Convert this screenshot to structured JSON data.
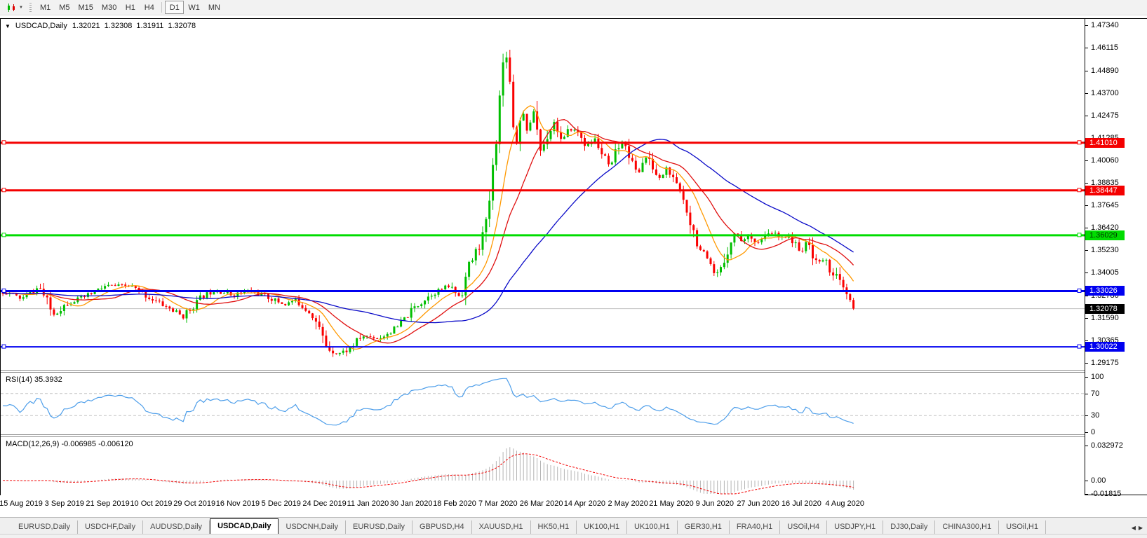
{
  "toolbar": {
    "timeframes": [
      "M1",
      "M5",
      "M15",
      "M30",
      "H1",
      "H4",
      "D1",
      "W1",
      "MN"
    ],
    "active_timeframe": "D1"
  },
  "chart": {
    "symbol_label": "USDCAD,Daily",
    "ohlc": {
      "open": "1.32021",
      "high": "1.32308",
      "low": "1.31911",
      "close": "1.32078"
    },
    "price_axis_ticks": [
      "1.47340",
      "1.46115",
      "1.44890",
      "1.43700",
      "1.42475",
      "1.41285",
      "1.40060",
      "1.38835",
      "1.37645",
      "1.36420",
      "1.35230",
      "1.34005",
      "1.32780",
      "1.31590",
      "1.30365",
      "1.29175"
    ],
    "hlines": [
      {
        "value": 1.4101,
        "label": "1.41010",
        "color": "#F40000",
        "text_color": "#FFFFFF",
        "thickness": 3
      },
      {
        "value": 1.38447,
        "label": "1.38447",
        "color": "#F40000",
        "text_color": "#FFFFFF",
        "thickness": 3
      },
      {
        "value": 1.36029,
        "label": "1.36029",
        "color": "#00DC00",
        "text_color": "#003300",
        "thickness": 3
      },
      {
        "value": 1.33026,
        "label": "1.33026",
        "color": "#0000F0",
        "text_color": "#FFFFFF",
        "thickness": 3
      },
      {
        "value": 1.30022,
        "label": "1.30022",
        "color": "#0000F0",
        "text_color": "#FFFFFF",
        "thickness": 2
      }
    ],
    "current_price": {
      "value": 1.32078,
      "label": "1.32078",
      "flag_bg": "#000000",
      "flag_text": "#FFFFFF",
      "line_color": "#C0C0C0"
    }
  },
  "rsi": {
    "label": "RSI(14) 35.3932",
    "line_color": "#4D9EEA",
    "levels": [
      70,
      30
    ],
    "axis_ticks": [
      {
        "value": 100,
        "label": "100"
      },
      {
        "value": 70,
        "label": "70"
      },
      {
        "value": 30,
        "label": "30"
      },
      {
        "value": 0,
        "label": "0"
      }
    ]
  },
  "macd": {
    "label": "MACD(12,26,9) -0.006985 -0.006120",
    "histogram_color": "#B4B4B4",
    "signal_color": "#F40000",
    "ylim": [
      -0.019,
      0.034
    ],
    "axis_ticks": [
      {
        "value": 0.032972,
        "label": "0.032972"
      },
      {
        "value": 0,
        "label": "0.00"
      },
      {
        "value": -0.01815,
        "label": "-0.01815"
      }
    ]
  },
  "date_axis": [
    "15 Aug 2019",
    "3 Sep 2019",
    "21 Sep 2019",
    "10 Oct 2019",
    "29 Oct 2019",
    "16 Nov 2019",
    "5 Dec 2019",
    "24 Dec 2019",
    "11 Jan 2020",
    "30 Jan 2020",
    "18 Feb 2020",
    "7 Mar 2020",
    "26 Mar 2020",
    "14 Apr 2020",
    "2 May 2020",
    "21 May 2020",
    "9 Jun 2020",
    "27 Jun 2020",
    "16 Jul 2020",
    "4 Aug 2020"
  ],
  "tabs": {
    "items": [
      "EURUSD,Daily",
      "USDCHF,Daily",
      "AUDUSD,Daily",
      "USDCAD,Daily",
      "USDCNH,Daily",
      "EURUSD,Daily",
      "GBPUSD,H4",
      "XAUUSD,H1",
      "HK50,H1",
      "UK100,H1",
      "UK100,H1",
      "GER30,H1",
      "FRA40,H1",
      "USOil,H4",
      "USDJPY,H1",
      "DJ30,Daily",
      "CHINA300,H1",
      "USOil,H1"
    ],
    "active_index": 3,
    "scroll_left_icon": "left-arrow",
    "scroll_right_icon": "right-arrow"
  },
  "chart_data": {
    "type": "candlestick",
    "title": "USDCAD,Daily",
    "ylim": [
      1.2878,
      1.4768
    ],
    "candle_up_color": "#00BE00",
    "candle_down_color": "#FA0000",
    "ma": [
      {
        "period": 10,
        "color": "#FF9900"
      },
      {
        "period": 20,
        "color": "#E01010"
      },
      {
        "period": 50,
        "color": "#0A0AC8"
      }
    ],
    "rsi_period": 14,
    "macd_params": [
      12,
      26,
      9
    ],
    "seed": 11,
    "x_start": -283,
    "x_end": 1216,
    "step": 4.85,
    "base_vol": 0.0016,
    "last_close": 1.32078,
    "price_path": [
      [
        -283,
        1.328
      ],
      [
        8,
        1.3295
      ],
      [
        30,
        1.326
      ],
      [
        55,
        1.3325
      ],
      [
        75,
        1.3175
      ],
      [
        95,
        1.324
      ],
      [
        120,
        1.327
      ],
      [
        150,
        1.333
      ],
      [
        185,
        1.333
      ],
      [
        210,
        1.327
      ],
      [
        240,
        1.321
      ],
      [
        260,
        1.3165
      ],
      [
        285,
        1.3265
      ],
      [
        305,
        1.331
      ],
      [
        330,
        1.328
      ],
      [
        355,
        1.3305
      ],
      [
        380,
        1.327
      ],
      [
        405,
        1.323
      ],
      [
        420,
        1.3255
      ],
      [
        445,
        1.3175
      ],
      [
        465,
        1.3
      ],
      [
        480,
        1.2965
      ],
      [
        495,
        1.2985
      ],
      [
        515,
        1.306
      ],
      [
        540,
        1.305
      ],
      [
        565,
        1.3105
      ],
      [
        590,
        1.3215
      ],
      [
        615,
        1.329
      ],
      [
        640,
        1.333
      ],
      [
        655,
        1.327
      ],
      [
        668,
        1.344
      ],
      [
        680,
        1.353
      ],
      [
        692,
        1.365
      ],
      [
        700,
        1.39
      ],
      [
        708,
        1.42
      ],
      [
        715,
        1.45
      ],
      [
        720,
        1.462
      ],
      [
        728,
        1.435
      ],
      [
        734,
        1.405
      ],
      [
        742,
        1.43
      ],
      [
        752,
        1.415
      ],
      [
        760,
        1.428
      ],
      [
        770,
        1.405
      ],
      [
        780,
        1.415
      ],
      [
        790,
        1.422
      ],
      [
        800,
        1.41
      ],
      [
        812,
        1.418
      ],
      [
        825,
        1.415
      ],
      [
        835,
        1.408
      ],
      [
        848,
        1.412
      ],
      [
        858,
        1.403
      ],
      [
        870,
        1.396
      ],
      [
        880,
        1.408
      ],
      [
        890,
        1.411
      ],
      [
        900,
        1.399
      ],
      [
        908,
        1.393
      ],
      [
        918,
        1.403
      ],
      [
        928,
        1.398
      ],
      [
        938,
        1.39
      ],
      [
        950,
        1.397
      ],
      [
        960,
        1.388
      ],
      [
        968,
        1.384
      ],
      [
        978,
        1.375
      ],
      [
        988,
        1.362
      ],
      [
        998,
        1.352
      ],
      [
        1008,
        1.345
      ],
      [
        1018,
        1.338
      ],
      [
        1028,
        1.342
      ],
      [
        1038,
        1.356
      ],
      [
        1048,
        1.362
      ],
      [
        1058,
        1.357
      ],
      [
        1068,
        1.361
      ],
      [
        1078,
        1.356
      ],
      [
        1090,
        1.359
      ],
      [
        1100,
        1.362
      ],
      [
        1112,
        1.358
      ],
      [
        1122,
        1.361
      ],
      [
        1132,
        1.355
      ],
      [
        1142,
        1.352
      ],
      [
        1150,
        1.357
      ],
      [
        1158,
        1.35
      ],
      [
        1166,
        1.345
      ],
      [
        1174,
        1.348
      ],
      [
        1182,
        1.342
      ],
      [
        1190,
        1.339
      ],
      [
        1198,
        1.333
      ],
      [
        1206,
        1.328
      ],
      [
        1215,
        1.32078
      ]
    ]
  }
}
